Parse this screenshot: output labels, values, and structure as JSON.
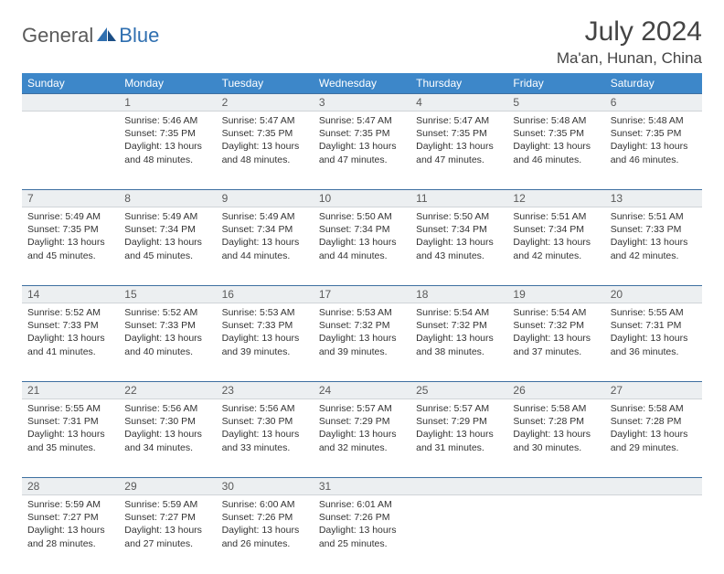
{
  "logo": {
    "word1": "General",
    "word2": "Blue"
  },
  "title": "July 2024",
  "location": "Ma'an, Hunan, China",
  "header_bg": "#3d87c9",
  "header_fg": "#ffffff",
  "daynum_bg": "#eceff1",
  "rule_color": "#3d6fa0",
  "weekdays": [
    "Sunday",
    "Monday",
    "Tuesday",
    "Wednesday",
    "Thursday",
    "Friday",
    "Saturday"
  ],
  "weeks": [
    [
      {
        "day": "",
        "sunrise": "",
        "sunset": "",
        "daylight": ""
      },
      {
        "day": "1",
        "sunrise": "Sunrise: 5:46 AM",
        "sunset": "Sunset: 7:35 PM",
        "daylight": "Daylight: 13 hours and 48 minutes."
      },
      {
        "day": "2",
        "sunrise": "Sunrise: 5:47 AM",
        "sunset": "Sunset: 7:35 PM",
        "daylight": "Daylight: 13 hours and 48 minutes."
      },
      {
        "day": "3",
        "sunrise": "Sunrise: 5:47 AM",
        "sunset": "Sunset: 7:35 PM",
        "daylight": "Daylight: 13 hours and 47 minutes."
      },
      {
        "day": "4",
        "sunrise": "Sunrise: 5:47 AM",
        "sunset": "Sunset: 7:35 PM",
        "daylight": "Daylight: 13 hours and 47 minutes."
      },
      {
        "day": "5",
        "sunrise": "Sunrise: 5:48 AM",
        "sunset": "Sunset: 7:35 PM",
        "daylight": "Daylight: 13 hours and 46 minutes."
      },
      {
        "day": "6",
        "sunrise": "Sunrise: 5:48 AM",
        "sunset": "Sunset: 7:35 PM",
        "daylight": "Daylight: 13 hours and 46 minutes."
      }
    ],
    [
      {
        "day": "7",
        "sunrise": "Sunrise: 5:49 AM",
        "sunset": "Sunset: 7:35 PM",
        "daylight": "Daylight: 13 hours and 45 minutes."
      },
      {
        "day": "8",
        "sunrise": "Sunrise: 5:49 AM",
        "sunset": "Sunset: 7:34 PM",
        "daylight": "Daylight: 13 hours and 45 minutes."
      },
      {
        "day": "9",
        "sunrise": "Sunrise: 5:49 AM",
        "sunset": "Sunset: 7:34 PM",
        "daylight": "Daylight: 13 hours and 44 minutes."
      },
      {
        "day": "10",
        "sunrise": "Sunrise: 5:50 AM",
        "sunset": "Sunset: 7:34 PM",
        "daylight": "Daylight: 13 hours and 44 minutes."
      },
      {
        "day": "11",
        "sunrise": "Sunrise: 5:50 AM",
        "sunset": "Sunset: 7:34 PM",
        "daylight": "Daylight: 13 hours and 43 minutes."
      },
      {
        "day": "12",
        "sunrise": "Sunrise: 5:51 AM",
        "sunset": "Sunset: 7:34 PM",
        "daylight": "Daylight: 13 hours and 42 minutes."
      },
      {
        "day": "13",
        "sunrise": "Sunrise: 5:51 AM",
        "sunset": "Sunset: 7:33 PM",
        "daylight": "Daylight: 13 hours and 42 minutes."
      }
    ],
    [
      {
        "day": "14",
        "sunrise": "Sunrise: 5:52 AM",
        "sunset": "Sunset: 7:33 PM",
        "daylight": "Daylight: 13 hours and 41 minutes."
      },
      {
        "day": "15",
        "sunrise": "Sunrise: 5:52 AM",
        "sunset": "Sunset: 7:33 PM",
        "daylight": "Daylight: 13 hours and 40 minutes."
      },
      {
        "day": "16",
        "sunrise": "Sunrise: 5:53 AM",
        "sunset": "Sunset: 7:33 PM",
        "daylight": "Daylight: 13 hours and 39 minutes."
      },
      {
        "day": "17",
        "sunrise": "Sunrise: 5:53 AM",
        "sunset": "Sunset: 7:32 PM",
        "daylight": "Daylight: 13 hours and 39 minutes."
      },
      {
        "day": "18",
        "sunrise": "Sunrise: 5:54 AM",
        "sunset": "Sunset: 7:32 PM",
        "daylight": "Daylight: 13 hours and 38 minutes."
      },
      {
        "day": "19",
        "sunrise": "Sunrise: 5:54 AM",
        "sunset": "Sunset: 7:32 PM",
        "daylight": "Daylight: 13 hours and 37 minutes."
      },
      {
        "day": "20",
        "sunrise": "Sunrise: 5:55 AM",
        "sunset": "Sunset: 7:31 PM",
        "daylight": "Daylight: 13 hours and 36 minutes."
      }
    ],
    [
      {
        "day": "21",
        "sunrise": "Sunrise: 5:55 AM",
        "sunset": "Sunset: 7:31 PM",
        "daylight": "Daylight: 13 hours and 35 minutes."
      },
      {
        "day": "22",
        "sunrise": "Sunrise: 5:56 AM",
        "sunset": "Sunset: 7:30 PM",
        "daylight": "Daylight: 13 hours and 34 minutes."
      },
      {
        "day": "23",
        "sunrise": "Sunrise: 5:56 AM",
        "sunset": "Sunset: 7:30 PM",
        "daylight": "Daylight: 13 hours and 33 minutes."
      },
      {
        "day": "24",
        "sunrise": "Sunrise: 5:57 AM",
        "sunset": "Sunset: 7:29 PM",
        "daylight": "Daylight: 13 hours and 32 minutes."
      },
      {
        "day": "25",
        "sunrise": "Sunrise: 5:57 AM",
        "sunset": "Sunset: 7:29 PM",
        "daylight": "Daylight: 13 hours and 31 minutes."
      },
      {
        "day": "26",
        "sunrise": "Sunrise: 5:58 AM",
        "sunset": "Sunset: 7:28 PM",
        "daylight": "Daylight: 13 hours and 30 minutes."
      },
      {
        "day": "27",
        "sunrise": "Sunrise: 5:58 AM",
        "sunset": "Sunset: 7:28 PM",
        "daylight": "Daylight: 13 hours and 29 minutes."
      }
    ],
    [
      {
        "day": "28",
        "sunrise": "Sunrise: 5:59 AM",
        "sunset": "Sunset: 7:27 PM",
        "daylight": "Daylight: 13 hours and 28 minutes."
      },
      {
        "day": "29",
        "sunrise": "Sunrise: 5:59 AM",
        "sunset": "Sunset: 7:27 PM",
        "daylight": "Daylight: 13 hours and 27 minutes."
      },
      {
        "day": "30",
        "sunrise": "Sunrise: 6:00 AM",
        "sunset": "Sunset: 7:26 PM",
        "daylight": "Daylight: 13 hours and 26 minutes."
      },
      {
        "day": "31",
        "sunrise": "Sunrise: 6:01 AM",
        "sunset": "Sunset: 7:26 PM",
        "daylight": "Daylight: 13 hours and 25 minutes."
      },
      {
        "day": "",
        "sunrise": "",
        "sunset": "",
        "daylight": ""
      },
      {
        "day": "",
        "sunrise": "",
        "sunset": "",
        "daylight": ""
      },
      {
        "day": "",
        "sunrise": "",
        "sunset": "",
        "daylight": ""
      }
    ]
  ]
}
